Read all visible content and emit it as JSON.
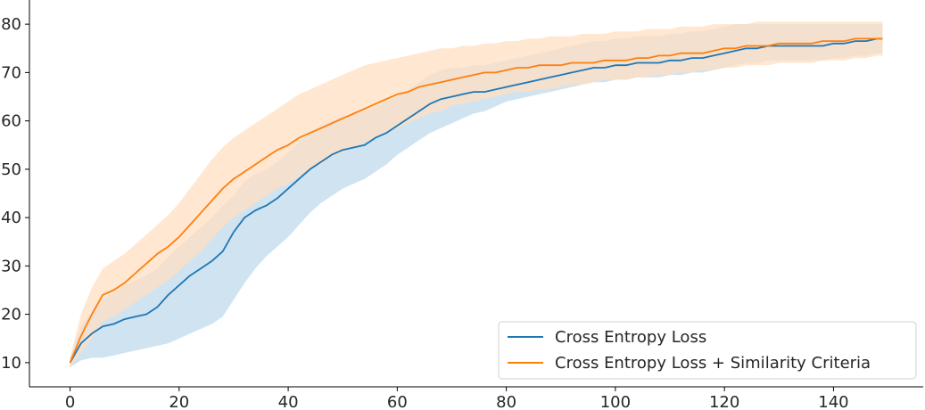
{
  "chart_data": {
    "type": "line",
    "title": "",
    "xlabel": "",
    "ylabel": "",
    "xlim": [
      -7.45,
      156.45
    ],
    "ylim": [
      5,
      85
    ],
    "xticks": [
      0,
      20,
      40,
      60,
      80,
      100,
      120,
      140
    ],
    "yticks": [
      10,
      20,
      30,
      40,
      50,
      60,
      70,
      80
    ],
    "grid": false,
    "legend_position": "lower-right",
    "bands": true,
    "series": [
      {
        "name": "Cross Entropy Loss",
        "color": "#1f77b4",
        "band_color": "#cfe3f1",
        "points": [
          [
            0,
            10
          ],
          [
            2,
            14
          ],
          [
            4,
            16
          ],
          [
            6,
            17.5
          ],
          [
            8,
            18
          ],
          [
            10,
            19
          ],
          [
            12,
            19.5
          ],
          [
            14,
            20
          ],
          [
            16,
            21.5
          ],
          [
            18,
            24
          ],
          [
            20,
            26
          ],
          [
            22,
            28
          ],
          [
            24,
            29.5
          ],
          [
            26,
            31
          ],
          [
            28,
            33
          ],
          [
            30,
            37
          ],
          [
            32,
            40
          ],
          [
            34,
            41.5
          ],
          [
            36,
            42.5
          ],
          [
            38,
            44
          ],
          [
            40,
            46
          ],
          [
            42,
            48
          ],
          [
            44,
            50
          ],
          [
            46,
            51.5
          ],
          [
            48,
            53
          ],
          [
            50,
            54
          ],
          [
            52,
            54.5
          ],
          [
            54,
            55
          ],
          [
            56,
            56.5
          ],
          [
            58,
            57.5
          ],
          [
            60,
            59
          ],
          [
            62,
            60.5
          ],
          [
            64,
            62
          ],
          [
            66,
            63.5
          ],
          [
            68,
            64.5
          ],
          [
            70,
            65
          ],
          [
            72,
            65.5
          ],
          [
            74,
            66
          ],
          [
            76,
            66
          ],
          [
            78,
            66.5
          ],
          [
            80,
            67
          ],
          [
            82,
            67.5
          ],
          [
            84,
            68
          ],
          [
            86,
            68.5
          ],
          [
            88,
            69
          ],
          [
            90,
            69.5
          ],
          [
            92,
            70
          ],
          [
            94,
            70.5
          ],
          [
            96,
            71
          ],
          [
            98,
            71
          ],
          [
            100,
            71.5
          ],
          [
            102,
            71.5
          ],
          [
            104,
            72
          ],
          [
            106,
            72
          ],
          [
            108,
            72
          ],
          [
            110,
            72.5
          ],
          [
            112,
            72.5
          ],
          [
            114,
            73
          ],
          [
            116,
            73
          ],
          [
            118,
            73.5
          ],
          [
            120,
            74
          ],
          [
            122,
            74.5
          ],
          [
            124,
            75
          ],
          [
            126,
            75
          ],
          [
            128,
            75.5
          ],
          [
            130,
            75.5
          ],
          [
            132,
            75.5
          ],
          [
            134,
            75.5
          ],
          [
            136,
            75.5
          ],
          [
            138,
            75.5
          ],
          [
            140,
            76
          ],
          [
            142,
            76
          ],
          [
            144,
            76.5
          ],
          [
            146,
            76.5
          ],
          [
            148,
            77
          ],
          [
            149,
            77
          ]
        ],
        "lower": [
          9,
          10.5,
          11,
          11,
          11.5,
          12,
          12.5,
          13,
          13.5,
          14,
          15,
          16,
          17,
          18,
          19.5,
          23,
          26.5,
          29.5,
          32,
          34,
          36,
          38.5,
          41,
          43,
          44.5,
          46,
          47,
          48,
          49.5,
          51,
          53,
          54.5,
          56,
          57.5,
          58.5,
          59.5,
          60.5,
          61.5,
          62,
          63,
          64,
          64.5,
          65,
          65.5,
          66,
          66.5,
          67,
          67.5,
          68,
          68,
          68.5,
          68.5,
          69,
          69,
          69,
          69.5,
          69.5,
          70,
          70,
          70.5,
          71,
          71.5,
          72,
          72,
          72.5,
          72.5,
          72.5,
          72.5,
          72.5,
          72.5,
          73,
          73,
          73.5,
          73.5,
          74,
          74
        ],
        "upper": [
          11,
          17.5,
          20.5,
          23,
          24.5,
          26,
          27,
          28,
          29.5,
          32,
          34,
          36,
          38,
          40,
          42.5,
          44.5,
          47.5,
          49,
          50,
          51.5,
          53.5,
          55.5,
          57.5,
          59,
          60,
          61,
          61.5,
          62,
          63,
          64,
          65,
          66.5,
          68,
          69.5,
          70.5,
          71,
          71,
          71.5,
          71.5,
          72,
          72.5,
          73,
          73.5,
          74,
          74.5,
          75,
          75.5,
          76,
          76.5,
          76.5,
          77,
          77,
          77.5,
          77.5,
          77.5,
          78,
          78,
          78.5,
          78.5,
          79,
          79.5,
          80,
          80,
          80,
          80,
          80,
          80,
          80,
          80,
          80,
          80,
          80,
          80,
          80,
          80,
          80
        ]
      },
      {
        "name": "Cross Entropy Loss + Similarity Criteria",
        "color": "#ff7f0e",
        "band_color": "#ffdfc2",
        "points": [
          [
            0,
            10
          ],
          [
            2,
            15.5
          ],
          [
            4,
            20
          ],
          [
            6,
            24
          ],
          [
            8,
            25
          ],
          [
            10,
            26.5
          ],
          [
            12,
            28.5
          ],
          [
            14,
            30.5
          ],
          [
            16,
            32.5
          ],
          [
            18,
            34
          ],
          [
            20,
            36
          ],
          [
            22,
            38.5
          ],
          [
            24,
            41
          ],
          [
            26,
            43.5
          ],
          [
            28,
            46
          ],
          [
            30,
            48
          ],
          [
            32,
            49.5
          ],
          [
            34,
            51
          ],
          [
            36,
            52.5
          ],
          [
            38,
            54
          ],
          [
            40,
            55
          ],
          [
            42,
            56.5
          ],
          [
            44,
            57.5
          ],
          [
            46,
            58.5
          ],
          [
            48,
            59.5
          ],
          [
            50,
            60.5
          ],
          [
            52,
            61.5
          ],
          [
            54,
            62.5
          ],
          [
            56,
            63.5
          ],
          [
            58,
            64.5
          ],
          [
            60,
            65.5
          ],
          [
            62,
            66
          ],
          [
            64,
            67
          ],
          [
            66,
            67.5
          ],
          [
            68,
            68
          ],
          [
            70,
            68.5
          ],
          [
            72,
            69
          ],
          [
            74,
            69.5
          ],
          [
            76,
            70
          ],
          [
            78,
            70
          ],
          [
            80,
            70.5
          ],
          [
            82,
            71
          ],
          [
            84,
            71
          ],
          [
            86,
            71.5
          ],
          [
            88,
            71.5
          ],
          [
            90,
            71.5
          ],
          [
            92,
            72
          ],
          [
            94,
            72
          ],
          [
            96,
            72
          ],
          [
            98,
            72.5
          ],
          [
            100,
            72.5
          ],
          [
            102,
            72.5
          ],
          [
            104,
            73
          ],
          [
            106,
            73
          ],
          [
            108,
            73.5
          ],
          [
            110,
            73.5
          ],
          [
            112,
            74
          ],
          [
            114,
            74
          ],
          [
            116,
            74
          ],
          [
            118,
            74.5
          ],
          [
            120,
            75
          ],
          [
            122,
            75
          ],
          [
            124,
            75.5
          ],
          [
            126,
            75.5
          ],
          [
            128,
            75.5
          ],
          [
            130,
            76
          ],
          [
            132,
            76
          ],
          [
            134,
            76
          ],
          [
            136,
            76
          ],
          [
            138,
            76.5
          ],
          [
            140,
            76.5
          ],
          [
            142,
            76.5
          ],
          [
            144,
            77
          ],
          [
            146,
            77
          ],
          [
            148,
            77
          ],
          [
            149,
            77
          ]
        ],
        "lower": [
          9,
          12,
          15,
          18.5,
          19.5,
          21,
          22.5,
          24,
          25.5,
          27,
          29,
          31,
          33,
          35.5,
          38,
          40,
          41.5,
          43,
          44.5,
          46,
          47,
          48.5,
          50,
          51,
          52.5,
          53.5,
          54.5,
          55.5,
          56.5,
          57.5,
          58.5,
          59.5,
          60.5,
          61.5,
          62,
          63,
          63.5,
          64,
          64.5,
          65,
          65.5,
          66,
          66,
          66.5,
          66.5,
          67,
          67.5,
          67.5,
          68,
          68.5,
          68.5,
          68.5,
          69,
          69,
          69.5,
          69.5,
          70,
          70,
          70.5,
          70.5,
          71,
          71,
          71.5,
          71.5,
          71.5,
          72,
          72,
          72,
          72,
          72.5,
          72.5,
          72.5,
          73,
          73,
          73.5,
          73.5
        ],
        "upper": [
          11,
          20,
          25.5,
          29.5,
          31,
          32.5,
          34.5,
          36.5,
          38.5,
          40.5,
          43,
          46,
          49,
          52,
          54.5,
          56.5,
          58,
          59.5,
          61,
          62.5,
          64,
          65.5,
          66.5,
          67.5,
          68.5,
          69.5,
          70.5,
          71.5,
          72,
          72.5,
          73,
          73.5,
          74,
          74.5,
          75,
          75,
          75.5,
          75.5,
          76,
          76,
          76.5,
          76.5,
          77,
          77,
          77.5,
          77.5,
          77.5,
          78,
          78,
          78,
          78.5,
          78.5,
          78.5,
          79,
          79,
          79,
          79.5,
          79.5,
          79.5,
          80,
          80,
          80,
          80,
          80.5,
          80.5,
          80.5,
          80.5,
          80.5,
          80.5,
          80.5,
          80.5,
          80.5,
          80.5,
          80.5,
          80.5,
          80.5
        ]
      }
    ]
  }
}
